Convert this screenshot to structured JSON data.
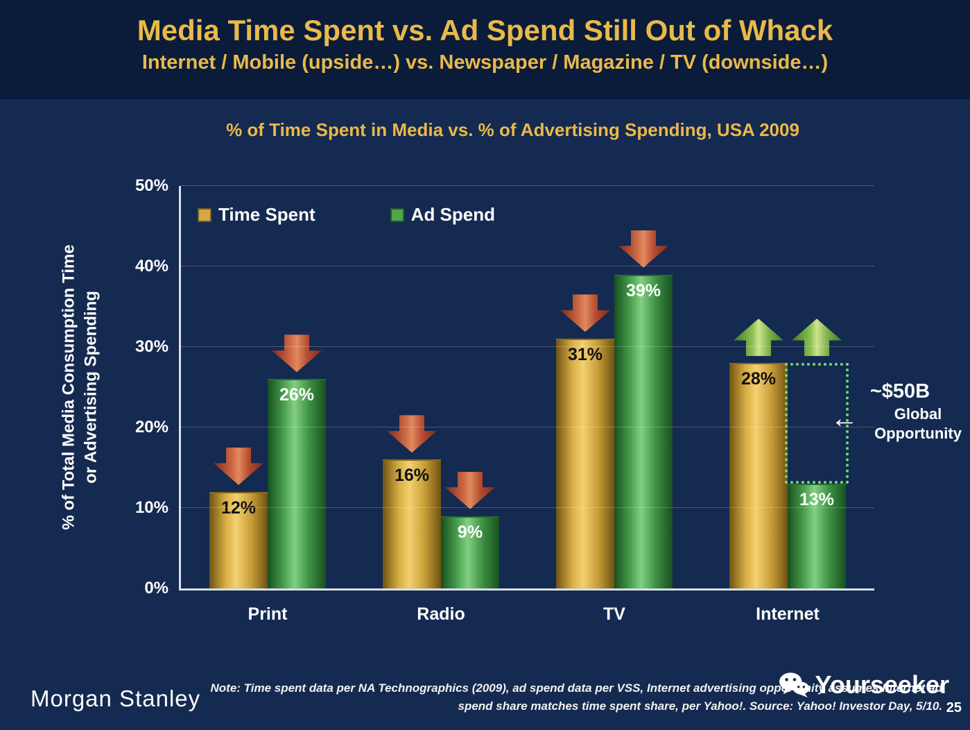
{
  "slide": {
    "title": "Media Time Spent vs. Ad Spend Still Out of Whack",
    "subtitle": "Internet / Mobile (upside…) vs. Newspaper / Magazine / TV (downside…)",
    "page_number": "25"
  },
  "chart_data": {
    "type": "bar",
    "title": "% of Time Spent in Media vs. % of Advertising Spending, USA 2009",
    "ylabel_lines": [
      "% of Total Media Consumption Time",
      "or Advertising Spending"
    ],
    "categories": [
      "Print",
      "Radio",
      "TV",
      "Internet"
    ],
    "series": [
      {
        "name": "Time Spent",
        "values": [
          12,
          16,
          31,
          28
        ],
        "color": "#d4a940",
        "label_color": "#111111"
      },
      {
        "name": "Ad Spend",
        "values": [
          26,
          9,
          39,
          13
        ],
        "color": "#4ca64c",
        "label_color": "#ffffff"
      }
    ],
    "value_suffix": "%",
    "ylim": [
      0,
      50
    ],
    "ytick_step": 10,
    "grid": true,
    "legend_position": "top-left",
    "trend_arrows": [
      [
        "down",
        "down"
      ],
      [
        "down",
        "down"
      ],
      [
        "down",
        "down"
      ],
      [
        "up",
        "up"
      ]
    ],
    "arrow_colors": {
      "down": "#c0504d",
      "up": "#9bbb59"
    },
    "opportunity_gap": {
      "category": "Internet",
      "series": "Ad Spend",
      "from": 13,
      "to": 28,
      "box_color": "#70dd70"
    }
  },
  "annotation": {
    "value": "~$50B",
    "line1": "Global",
    "line2": "Opportunity",
    "arrow": "←"
  },
  "footer": {
    "logo": "Morgan Stanley",
    "note_line1": "Note: Time spent data per NA Technographics (2009), ad spend data per VSS, Internet advertising opportunity assumes Internet ad",
    "note_line2": "spend share matches time spent share, per Yahoo!. Source: Yahoo! Investor Day, 5/10.",
    "watermark": "Yourseeker"
  }
}
